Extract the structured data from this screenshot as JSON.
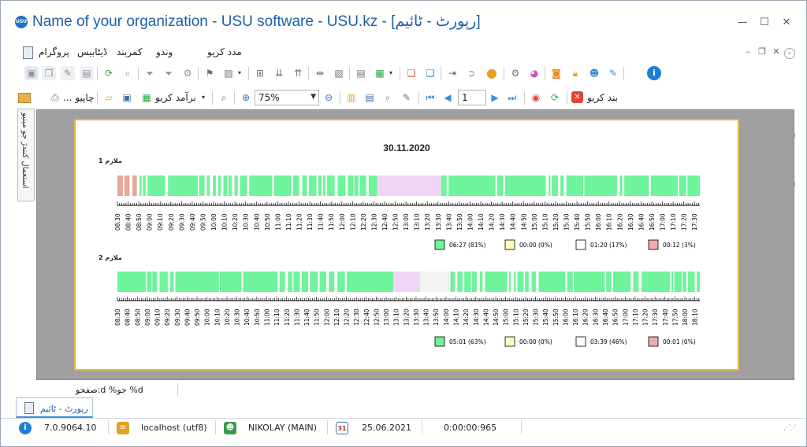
{
  "window": {
    "title": "Name of your organization - USU software - USU.kz - [رپورٹ - ٹائیم]",
    "logo_text": "USU",
    "minimize": "—",
    "maximize": "☐",
    "close": "✕",
    "inner_minimize": "–",
    "inner_restore": "❐",
    "inner_close": "✕"
  },
  "menu": {
    "items": [
      "مدد کریو",
      "وندو",
      "کمربند",
      "ڈیٹابیس",
      "پروگرام"
    ]
  },
  "toolbar2": {
    "close_report_label": "بند کریو",
    "page_value": "1",
    "zoom_value": "75%",
    "export_label": "برآمد کریو",
    "print_label": "... چاپیو"
  },
  "side_panel": {
    "label": "استعمال کنندڙ جو مینیو"
  },
  "report": {
    "date": "30.11.2020",
    "employees": [
      {
        "label": "ملازم 1",
        "times": [
          "08:30",
          "08:40",
          "08:50",
          "09:00",
          "09:10",
          "09:20",
          "09:30",
          "09:40",
          "09:50",
          "10:00",
          "10:10",
          "10:20",
          "10:30",
          "10:40",
          "10:50",
          "11:00",
          "11:10",
          "11:20",
          "11:30",
          "11:40",
          "11:50",
          "12:00",
          "12:10",
          "12:20",
          "12:30",
          "12:40",
          "12:50",
          "13:00",
          "13:10",
          "13:20",
          "13:30",
          "13:40",
          "13:50",
          "14:00",
          "14:10",
          "14:20",
          "14:30",
          "14:40",
          "14:50",
          "15:00",
          "15:10",
          "15:20",
          "15:30",
          "15:40",
          "15:50",
          "16:00",
          "16:10",
          "16:20",
          "16:30",
          "16:40",
          "16:50",
          "17:00",
          "17:10",
          "17:20",
          "17:30"
        ],
        "legend": [
          {
            "color": "#6ff39b",
            "text": "06:27 (81%)"
          },
          {
            "color": "#fdfbc0",
            "text": "00:00 (0%)"
          },
          {
            "color": "#ffffff",
            "text": "01:20 (17%)"
          },
          {
            "color": "#f3a9a9",
            "text": "00:12 (3%)"
          }
        ]
      },
      {
        "label": "ملازم 2",
        "times": [
          "08:30",
          "08:40",
          "08:50",
          "09:00",
          "09:10",
          "09:20",
          "09:30",
          "09:40",
          "09:50",
          "10:00",
          "10:10",
          "10:20",
          "10:30",
          "10:40",
          "10:50",
          "11:00",
          "11:10",
          "11:20",
          "11:30",
          "11:40",
          "11:50",
          "12:00",
          "12:10",
          "12:20",
          "12:30",
          "12:40",
          "12:50",
          "13:00",
          "13:10",
          "13:20",
          "13:30",
          "13:40",
          "13:50",
          "14:00",
          "14:10",
          "14:20",
          "14:30",
          "14:40",
          "14:50",
          "15:00",
          "15:10",
          "15:20",
          "15:30",
          "15:40",
          "15:50",
          "16:00",
          "16:10",
          "16:20",
          "16:30",
          "16:40",
          "16:50",
          "17:00",
          "17:10",
          "17:20",
          "17:30",
          "17:40",
          "17:50",
          "18:00",
          "18:10"
        ],
        "legend": [
          {
            "color": "#6ff39b",
            "text": "05:01 (63%)"
          },
          {
            "color": "#fdfbc0",
            "text": "00:00 (0%)"
          },
          {
            "color": "#ffffff",
            "text": "03:39 (46%)"
          },
          {
            "color": "#f3a9a9",
            "text": "00:01 (0%)"
          }
        ]
      }
    ],
    "colors": {
      "active": "#6ff39b",
      "break": "#efd4f7",
      "idle": "#ffffff",
      "late": "#e5a99a",
      "offline": "#f2f2f2"
    }
  },
  "footer": {
    "page_status": "صفحو:d %جو %d",
    "tab_label": "رپورٹ - ٹائیم",
    "version": "7.0.9064.10",
    "db": "localhost (utf8)",
    "user": "NIKOLAY (MAIN)",
    "date": "25.06.2021",
    "timer": "0:00:00:965",
    "calendar_day": "31"
  }
}
